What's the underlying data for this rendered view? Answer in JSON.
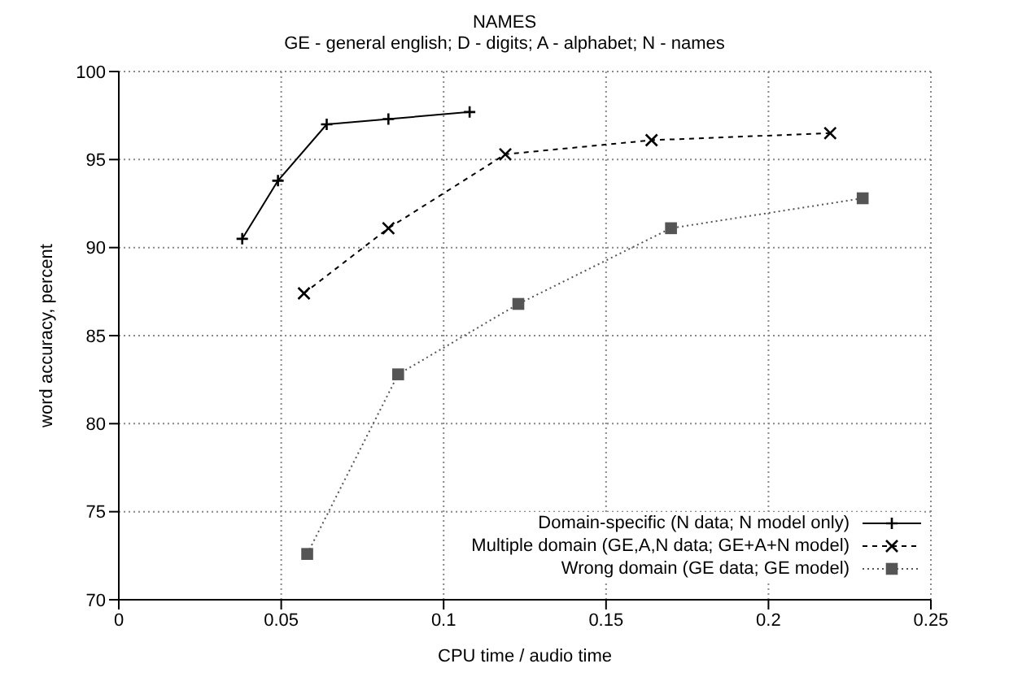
{
  "chart_data": {
    "type": "line",
    "title": "NAMES",
    "subtitle": "GE - general english; D - digits; A - alphabet; N - names",
    "xlabel": "CPU time / audio time",
    "ylabel": "word accuracy, percent",
    "series": [
      {
        "name": "Domain-specific (N data; N model only)",
        "color": "#000000",
        "line_style": "solid",
        "marker": "plus",
        "x": [
          0.038,
          0.049,
          0.064,
          0.083,
          0.108
        ],
        "values": [
          90.5,
          93.8,
          97.0,
          97.3,
          97.7
        ]
      },
      {
        "name": "Multiple domain (GE,A,N data; GE+A+N model)",
        "color": "#000000",
        "line_style": "dashed",
        "marker": "cross",
        "x": [
          0.057,
          0.083,
          0.119,
          0.164,
          0.219
        ],
        "values": [
          87.4,
          91.1,
          95.3,
          96.1,
          96.5
        ]
      },
      {
        "name": "Wrong domain (GE data; GE model)",
        "color": "#555555",
        "line_style": "dotted",
        "marker": "square",
        "x": [
          0.058,
          0.086,
          0.123,
          0.17,
          0.229
        ],
        "values": [
          72.6,
          82.8,
          86.8,
          91.1,
          92.8
        ]
      }
    ],
    "xlim": [
      0,
      0.25
    ],
    "xticks": [
      0,
      0.05,
      0.1,
      0.15,
      0.2,
      0.25
    ],
    "ylim": [
      70,
      100
    ],
    "yticks": [
      70,
      75,
      80,
      85,
      90,
      95,
      100
    ],
    "grid": true,
    "legend": "bottom right"
  }
}
